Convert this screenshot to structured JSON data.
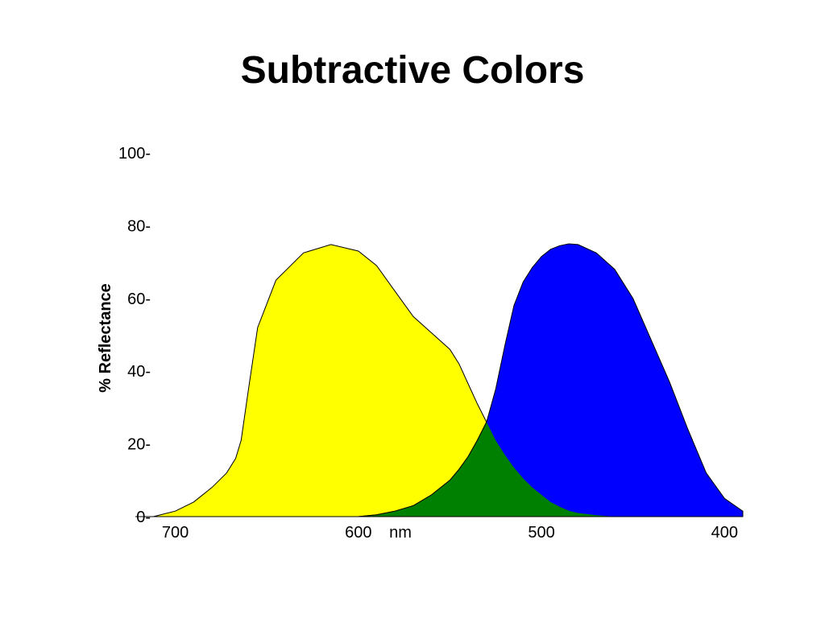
{
  "slide": {
    "title": "Subtractive Colors"
  },
  "chart_data": {
    "type": "area",
    "title": "",
    "ylabel": "% Reflectance",
    "xlabel": "nm",
    "xlim": [
      713,
      390
    ],
    "ylim": [
      0,
      100
    ],
    "x_ticks": [
      {
        "value": 700,
        "label": "700"
      },
      {
        "value": 600,
        "label": "600"
      },
      {
        "value": 500,
        "label": "500"
      },
      {
        "value": 400,
        "label": "400"
      }
    ],
    "y_ticks": [
      {
        "value": 100,
        "label": "100-"
      },
      {
        "value": 80,
        "label": "80-"
      },
      {
        "value": 60,
        "label": "60-"
      },
      {
        "value": 40,
        "label": "40-"
      },
      {
        "value": 20,
        "label": "20-"
      },
      {
        "value": 0,
        "label": "0-"
      }
    ],
    "overlap_color": "#008000",
    "series": [
      {
        "color": "#ffff00",
        "x": [
          712,
          700,
          690,
          680,
          672,
          667,
          664,
          660,
          655,
          645,
          630,
          615,
          600,
          590,
          580,
          570,
          560,
          550,
          545,
          540,
          535,
          530,
          525,
          520,
          515,
          510,
          505,
          500,
          495,
          490,
          485,
          480,
          470,
          460,
          450,
          440,
          430,
          420,
          410,
          400,
          390
        ],
        "y": [
          0,
          1.5,
          4,
          8,
          12,
          16,
          21,
          35,
          52,
          65,
          72.5,
          74.8,
          73,
          69,
          62,
          55,
          50.5,
          46,
          42,
          36.5,
          31,
          26,
          21,
          17,
          13.5,
          10.5,
          8,
          6,
          4,
          2.7,
          1.6,
          1,
          0.4,
          0,
          0,
          0,
          0,
          0,
          0,
          0,
          0
        ]
      },
      {
        "color": "#0000ff",
        "x": [
          712,
          700,
          690,
          680,
          672,
          667,
          664,
          660,
          655,
          645,
          630,
          615,
          600,
          590,
          580,
          570,
          560,
          550,
          545,
          540,
          535,
          530,
          525,
          520,
          515,
          510,
          505,
          500,
          495,
          490,
          485,
          480,
          470,
          460,
          450,
          440,
          430,
          420,
          410,
          400,
          390
        ],
        "y": [
          0,
          0,
          0,
          0,
          0,
          0,
          0,
          0,
          0,
          0,
          0,
          0,
          0,
          0.5,
          1.5,
          3,
          6,
          10,
          13,
          16.5,
          21,
          26,
          35,
          47,
          58,
          64.5,
          68.5,
          71.5,
          73.5,
          74.5,
          75,
          74.8,
          72.5,
          68,
          60,
          48.5,
          37,
          24,
          12,
          5,
          1.5
        ]
      }
    ]
  }
}
